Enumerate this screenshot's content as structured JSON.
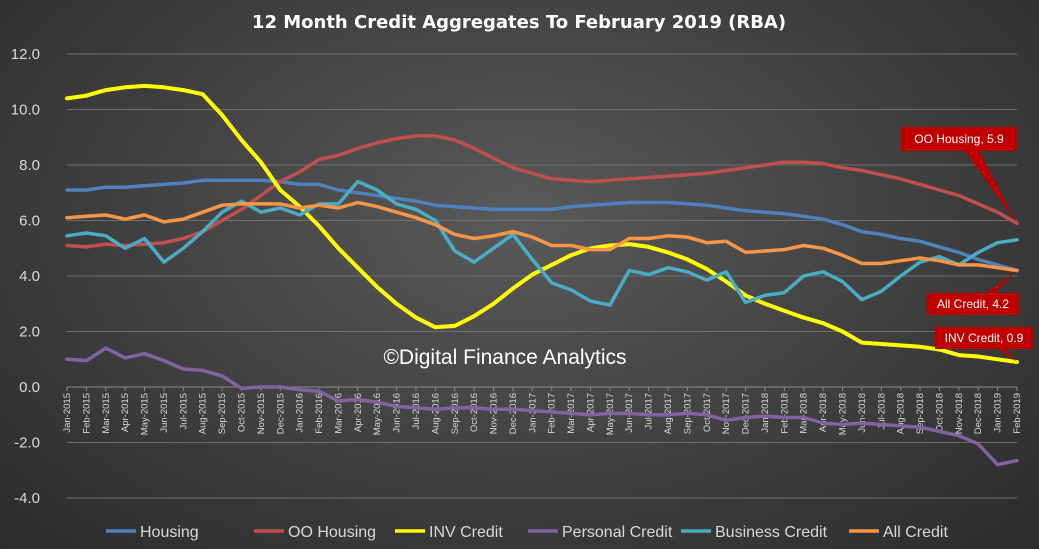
{
  "chart_data": {
    "type": "line",
    "title": "12 Month Credit Aggregates To February 2019 (RBA)",
    "watermark": "©Digital Finance Analytics",
    "ylim": [
      -4.0,
      12.0
    ],
    "yticks": [
      "12.0",
      "10.0",
      "8.0",
      "6.0",
      "4.0",
      "2.0",
      "0.0",
      "-2.0",
      "-4.0"
    ],
    "legend_position": "bottom",
    "categories": [
      "Jan-2015",
      "Feb-2015",
      "Mar-2015",
      "Apr-2015",
      "May-2015",
      "Jun-2015",
      "Jul-2015",
      "Aug-2015",
      "Sep-2015",
      "Oct-2015",
      "Nov-2015",
      "Dec-2015",
      "Jan-2016",
      "Feb-2016",
      "Mar-2016",
      "Apr-2016",
      "May-2016",
      "Jun-2016",
      "Jul-2016",
      "Aug-2016",
      "Sep-2016",
      "Oct-2016",
      "Nov-2016",
      "Dec-2016",
      "Jan-2017",
      "Feb-2017",
      "Mar-2017",
      "Apr-2017",
      "May-2017",
      "Jun-2017",
      "Jul-2017",
      "Aug-2017",
      "Sep-2017",
      "Oct-2017",
      "Nov-2017",
      "Dec-2017",
      "Jan-2018",
      "Feb-2018",
      "Mar-2018",
      "Apr-2018",
      "May-2018",
      "Jun-2018",
      "Jul-2018",
      "Aug-2018",
      "Sep-2018",
      "Oct-2018",
      "Nov-2018",
      "Dec-2018",
      "Jan-2019",
      "Feb-2019"
    ],
    "series": [
      {
        "name": "Housing",
        "color": "#4f81bd",
        "values": [
          7.1,
          7.1,
          7.2,
          7.2,
          7.25,
          7.3,
          7.35,
          7.45,
          7.45,
          7.45,
          7.45,
          7.4,
          7.3,
          7.3,
          7.1,
          7.0,
          6.9,
          6.8,
          6.7,
          6.55,
          6.5,
          6.45,
          6.4,
          6.4,
          6.4,
          6.4,
          6.5,
          6.55,
          6.6,
          6.65,
          6.65,
          6.65,
          6.6,
          6.55,
          6.45,
          6.35,
          6.3,
          6.25,
          6.15,
          6.05,
          5.85,
          5.6,
          5.5,
          5.35,
          5.25,
          5.05,
          4.85,
          4.6,
          4.4,
          4.2
        ]
      },
      {
        "name": "OO Housing",
        "color": "#c0504d",
        "values": [
          5.1,
          5.05,
          5.15,
          5.1,
          5.15,
          5.2,
          5.35,
          5.6,
          6.0,
          6.4,
          6.9,
          7.4,
          7.75,
          8.2,
          8.35,
          8.6,
          8.8,
          8.95,
          9.05,
          9.05,
          8.9,
          8.6,
          8.25,
          7.9,
          7.7,
          7.5,
          7.45,
          7.4,
          7.45,
          7.5,
          7.55,
          7.6,
          7.65,
          7.7,
          7.8,
          7.9,
          8.0,
          8.1,
          8.1,
          8.05,
          7.9,
          7.8,
          7.65,
          7.5,
          7.3,
          7.1,
          6.9,
          6.6,
          6.3,
          5.9
        ]
      },
      {
        "name": "INV Credit",
        "color": "#ffff00",
        "values": [
          10.4,
          10.5,
          10.7,
          10.8,
          10.85,
          10.8,
          10.7,
          10.55,
          9.8,
          8.9,
          8.1,
          7.1,
          6.5,
          5.8,
          5.0,
          4.3,
          3.6,
          3.0,
          2.5,
          2.15,
          2.2,
          2.55,
          3.0,
          3.55,
          4.05,
          4.4,
          4.75,
          5.0,
          5.1,
          5.15,
          5.05,
          4.85,
          4.6,
          4.25,
          3.8,
          3.3,
          3.0,
          2.75,
          2.5,
          2.3,
          2.0,
          1.6,
          1.55,
          1.5,
          1.45,
          1.35,
          1.15,
          1.1,
          1.0,
          0.9
        ]
      },
      {
        "name": "Personal Credit",
        "color": "#8064a2",
        "values": [
          1.0,
          0.95,
          1.4,
          1.05,
          1.2,
          0.95,
          0.65,
          0.6,
          0.4,
          -0.05,
          0.0,
          0.0,
          -0.1,
          -0.15,
          -0.5,
          -0.45,
          -0.55,
          -0.7,
          -0.75,
          -0.8,
          -0.75,
          -0.75,
          -0.8,
          -0.8,
          -0.85,
          -0.9,
          -0.95,
          -1.0,
          -0.95,
          -0.95,
          -1.0,
          -1.0,
          -0.95,
          -1.0,
          -1.2,
          -1.1,
          -1.05,
          -1.1,
          -1.1,
          -1.3,
          -1.35,
          -1.3,
          -1.35,
          -1.4,
          -1.45,
          -1.6,
          -1.75,
          -2.05,
          -2.8,
          -2.65
        ]
      },
      {
        "name": "Business Credit",
        "color": "#4bacc6",
        "values": [
          5.45,
          5.55,
          5.45,
          5.0,
          5.35,
          4.5,
          5.0,
          5.6,
          6.3,
          6.7,
          6.3,
          6.45,
          6.2,
          6.6,
          6.6,
          7.4,
          7.1,
          6.6,
          6.4,
          6.0,
          4.9,
          4.5,
          5.0,
          5.5,
          4.6,
          3.75,
          3.5,
          3.1,
          2.95,
          4.2,
          4.05,
          4.3,
          4.15,
          3.85,
          4.15,
          3.05,
          3.3,
          3.4,
          4.0,
          4.15,
          3.8,
          3.15,
          3.45,
          4.0,
          4.5,
          4.7,
          4.4,
          4.85,
          5.2,
          5.3
        ]
      },
      {
        "name": "All Credit",
        "color": "#f79646",
        "values": [
          6.1,
          6.15,
          6.2,
          6.05,
          6.2,
          5.95,
          6.05,
          6.3,
          6.55,
          6.6,
          6.6,
          6.6,
          6.45,
          6.55,
          6.45,
          6.65,
          6.5,
          6.3,
          6.1,
          5.85,
          5.5,
          5.35,
          5.45,
          5.6,
          5.4,
          5.1,
          5.1,
          4.95,
          4.95,
          5.35,
          5.35,
          5.45,
          5.4,
          5.2,
          5.25,
          4.85,
          4.9,
          4.95,
          5.1,
          5.0,
          4.75,
          4.45,
          4.45,
          4.55,
          4.65,
          4.55,
          4.4,
          4.4,
          4.3,
          4.2
        ]
      }
    ],
    "annotations": [
      {
        "text": "OO Housing, 5.9",
        "series": "OO Housing",
        "color": "#c00000"
      },
      {
        "text": "All Credit, 4.2",
        "series": "All Credit",
        "color": "#c00000"
      },
      {
        "text": "INV Credit, 0.9",
        "series": "INV Credit",
        "color": "#c00000"
      }
    ]
  }
}
